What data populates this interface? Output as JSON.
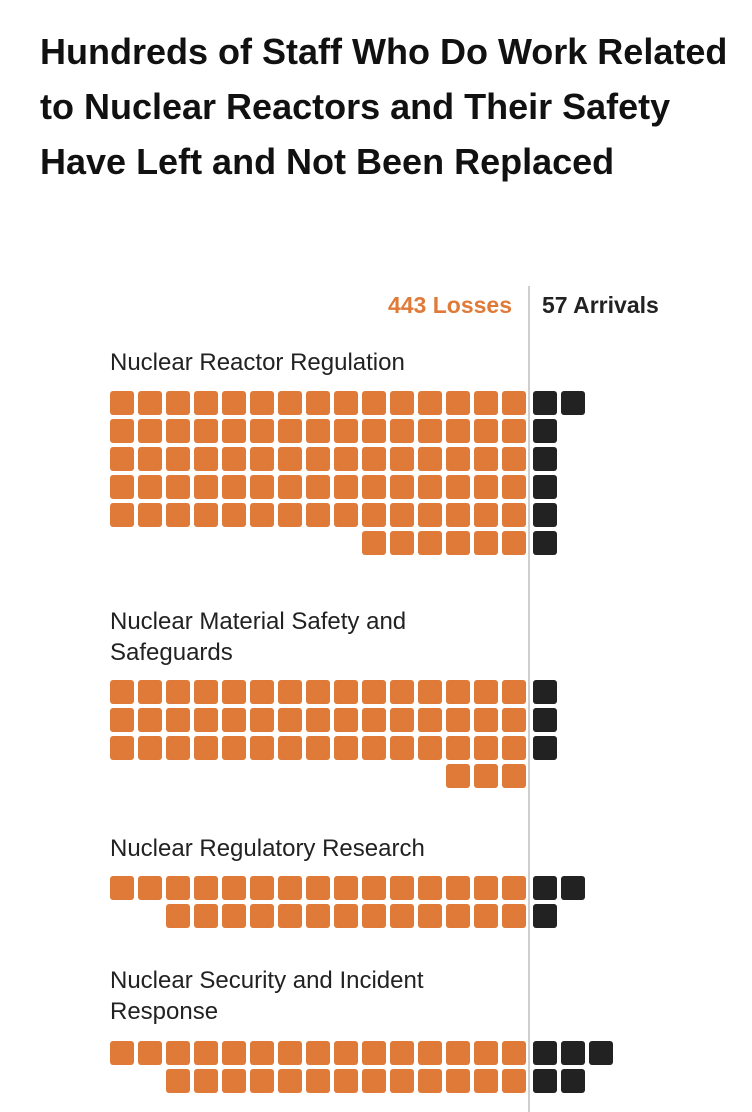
{
  "title": "Hundreds of Staff Who Do Work Related to Nuclear Reactors and Their Safety Have Left and Not Been Replaced",
  "colors": {
    "loss": "#e07a38",
    "arrival": "#222222"
  },
  "chart_data": {
    "type": "waffle",
    "legend": [
      {
        "label": "443 Losses",
        "key": "losses",
        "color": "#e07a38"
      },
      {
        "label": "57 Arrivals",
        "key": "arrivals",
        "color": "#222222"
      }
    ],
    "categories": [
      {
        "name": "Nuclear Reactor Regulation",
        "losses": 81,
        "arrivals": 7
      },
      {
        "name": "Nuclear Material Safety and Safeguards",
        "losses": 48,
        "arrivals": 3
      },
      {
        "name": "Nuclear Regulatory Research",
        "losses": 28,
        "arrivals": 3
      },
      {
        "name": "Nuclear Security and Incident Response",
        "losses": 28,
        "arrivals": 5
      }
    ]
  }
}
